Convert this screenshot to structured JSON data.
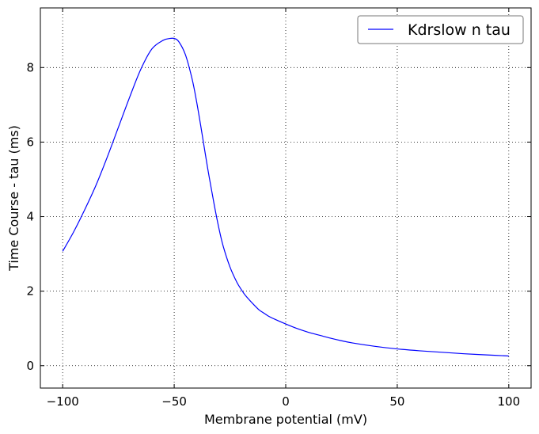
{
  "chart_data": {
    "type": "line",
    "title": "",
    "xlabel": "Membrane potential (mV)",
    "ylabel": "Time Course - tau (ms)",
    "xlim": [
      -110,
      110
    ],
    "ylim": [
      -0.6,
      9.6
    ],
    "xticks": [
      -100,
      -50,
      0,
      50,
      100
    ],
    "xtick_labels": [
      "−100",
      "−50",
      "0",
      "50",
      "100"
    ],
    "yticks": [
      0,
      2,
      4,
      6,
      8
    ],
    "ytick_labels": [
      "0",
      "2",
      "4",
      "6",
      "8"
    ],
    "grid": true,
    "legend_position": "top-right",
    "series": [
      {
        "name": "Kdrslow n tau",
        "color": "#0000ff",
        "x": [
          -100,
          -95,
          -90,
          -85,
          -80,
          -75,
          -70,
          -65,
          -60,
          -55,
          -52,
          -50,
          -48,
          -45,
          -42,
          -40,
          -38,
          -35,
          -32,
          -30,
          -28,
          -25,
          -22,
          -20,
          -18,
          -15,
          -12,
          -10,
          -8,
          -5,
          0,
          5,
          10,
          15,
          20,
          25,
          30,
          40,
          50,
          60,
          70,
          80,
          90,
          100
        ],
        "y": [
          3.07,
          3.6,
          4.2,
          4.85,
          5.6,
          6.4,
          7.2,
          7.95,
          8.5,
          8.73,
          8.78,
          8.78,
          8.7,
          8.35,
          7.7,
          7.1,
          6.4,
          5.3,
          4.3,
          3.7,
          3.2,
          2.65,
          2.25,
          2.05,
          1.88,
          1.68,
          1.5,
          1.42,
          1.34,
          1.25,
          1.12,
          1.0,
          0.9,
          0.82,
          0.74,
          0.67,
          0.61,
          0.52,
          0.45,
          0.4,
          0.36,
          0.32,
          0.29,
          0.26
        ]
      }
    ]
  }
}
